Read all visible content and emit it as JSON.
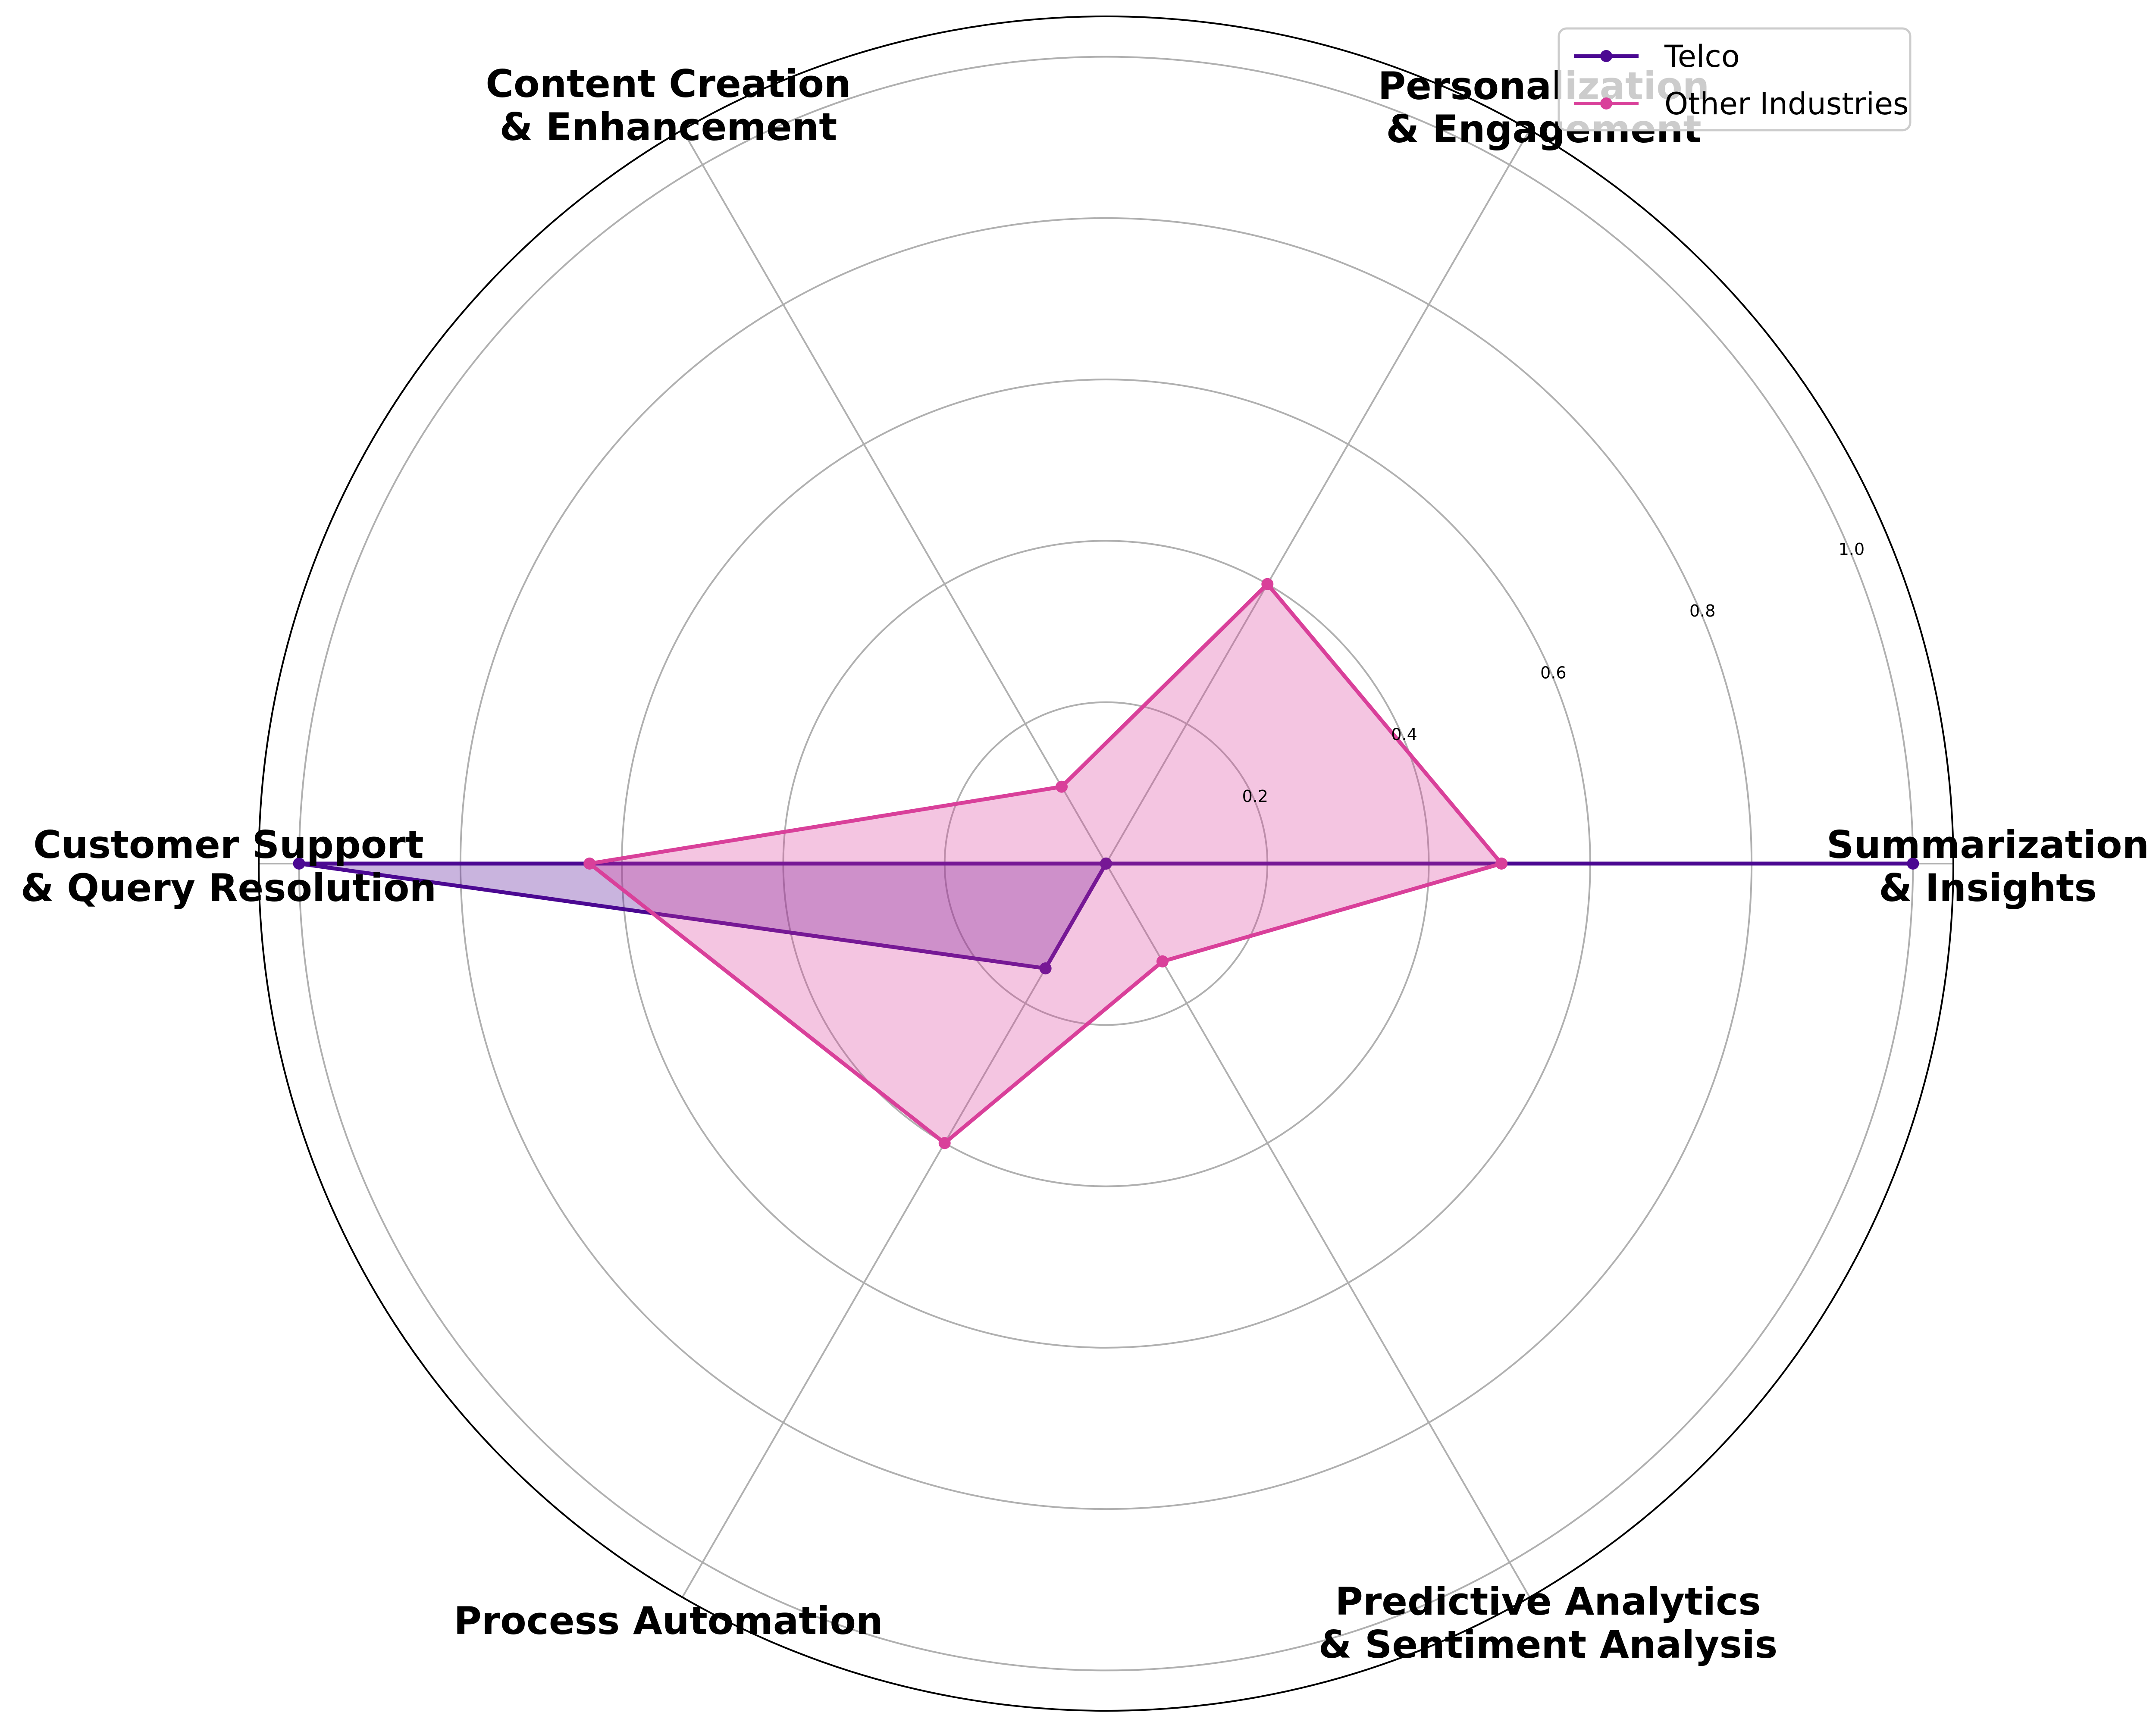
{
  "chart_data": {
    "type": "radar",
    "categories": [
      [
        "Summarization",
        "& Insights"
      ],
      [
        "Personalization",
        "& Engagement"
      ],
      [
        "Content Creation",
        "& Enhancement"
      ],
      [
        "Customer Support",
        "& Query Resolution"
      ],
      [
        "Process Automation"
      ],
      [
        "Predictive Analytics",
        "& Sentiment Analysis"
      ]
    ],
    "series": [
      {
        "name": "Telco",
        "values": [
          1.0,
          0.0,
          0.0,
          1.0,
          0.15,
          0.0
        ],
        "color": "#4b0892"
      },
      {
        "name": "Other Industries",
        "values": [
          0.49,
          0.4,
          0.11,
          0.64,
          0.4,
          0.14
        ],
        "color": "#d9409a"
      }
    ],
    "radial_ticks": [
      "0.2",
      "0.4",
      "0.6",
      "0.8",
      "1.0"
    ],
    "radial_tick_values": [
      0.2,
      0.4,
      0.6,
      0.8,
      1.0
    ],
    "rlim": [
      0,
      1.05
    ],
    "grid": true,
    "legend_position": "top-right"
  }
}
